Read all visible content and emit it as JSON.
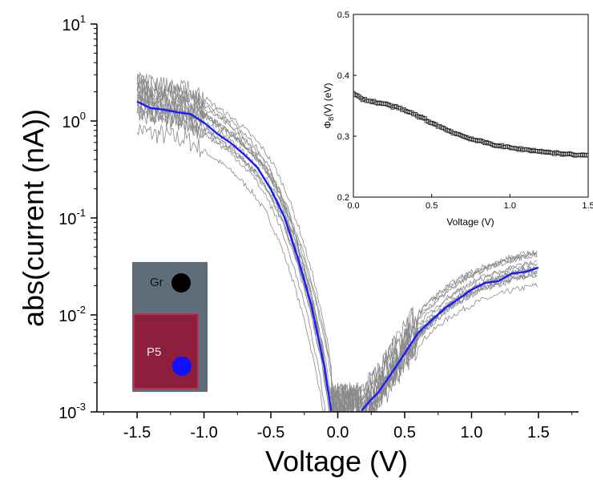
{
  "chart_data": {
    "type": "line",
    "main": {
      "xlabel": "Voltage (V)",
      "ylabel": "abs(current (nA))",
      "xlim": [
        -1.8,
        1.8
      ],
      "ylim": [
        0.001,
        10
      ],
      "yscale": "log",
      "x_ticks": [
        -1.5,
        -1.0,
        -0.5,
        0.0,
        0.5,
        1.0,
        1.5
      ],
      "x_tick_labels": [
        "-1.5",
        "-1.0",
        "-0.5",
        "0.0",
        "0.5",
        "1.0",
        "1.5"
      ],
      "y_tick_labels": [
        {
          "base": "10",
          "exp": "1",
          "value": 10
        },
        {
          "base": "10",
          "exp": "0",
          "value": 1
        },
        {
          "base": "10",
          "exp": "-1",
          "value": 0.1
        },
        {
          "base": "10",
          "exp": "-2",
          "value": 0.01
        },
        {
          "base": "10",
          "exp": "-3",
          "value": 0.001
        }
      ],
      "colors": {
        "average": "#1a1aff",
        "individual": "#8a8a8a"
      },
      "average_curve": {
        "x": [
          -1.5,
          -1.4,
          -1.3,
          -1.2,
          -1.1,
          -1.0,
          -0.9,
          -0.8,
          -0.7,
          -0.6,
          -0.5,
          -0.4,
          -0.3,
          -0.2,
          -0.1,
          -0.05,
          0.18,
          0.25,
          0.3,
          0.4,
          0.5,
          0.6,
          0.7,
          0.8,
          0.9,
          1.0,
          1.1,
          1.2,
          1.3,
          1.4,
          1.5
        ],
        "y": [
          1.6,
          1.35,
          1.3,
          1.2,
          1.15,
          0.95,
          0.75,
          0.6,
          0.45,
          0.32,
          0.2,
          0.1,
          0.04,
          0.013,
          0.003,
          0.001,
          0.001,
          0.0013,
          0.0016,
          0.0025,
          0.004,
          0.0065,
          0.009,
          0.012,
          0.015,
          0.018,
          0.021,
          0.023,
          0.026,
          0.028,
          0.03
        ]
      },
      "individual_curve_count": 14
    },
    "inset": {
      "type": "scatter",
      "xlabel": "Voltage (V)",
      "ylabel": {
        "base": "Φ",
        "sub": "B",
        "rest": "(V) (eV)"
      },
      "xlim": [
        0.0,
        1.5
      ],
      "ylim": [
        0.2,
        0.5
      ],
      "x_ticks": [
        0.0,
        0.5,
        1.0,
        1.5
      ],
      "x_tick_labels": [
        "0.0",
        "0.5",
        "1.0",
        "1.5"
      ],
      "y_ticks": [
        0.2,
        0.3,
        0.4,
        0.5
      ],
      "y_tick_labels": [
        "0.2",
        "0.3",
        "0.4",
        "0.5"
      ],
      "curve": {
        "x": [
          0.0,
          0.05,
          0.1,
          0.2,
          0.3,
          0.4,
          0.5,
          0.6,
          0.7,
          0.8,
          0.9,
          1.0,
          1.1,
          1.2,
          1.3,
          1.4,
          1.5
        ],
        "y": [
          0.37,
          0.362,
          0.358,
          0.353,
          0.345,
          0.335,
          0.322,
          0.31,
          0.3,
          0.292,
          0.286,
          0.281,
          0.278,
          0.275,
          0.272,
          0.27,
          0.268
        ]
      }
    },
    "photo_inset": {
      "labels": [
        "Gr",
        "P5"
      ],
      "colors": {
        "background": "#5d6e7a",
        "pad": "#8e1e3e",
        "gr_dot": "#000000",
        "p5_dot": "#1010ff"
      }
    }
  }
}
